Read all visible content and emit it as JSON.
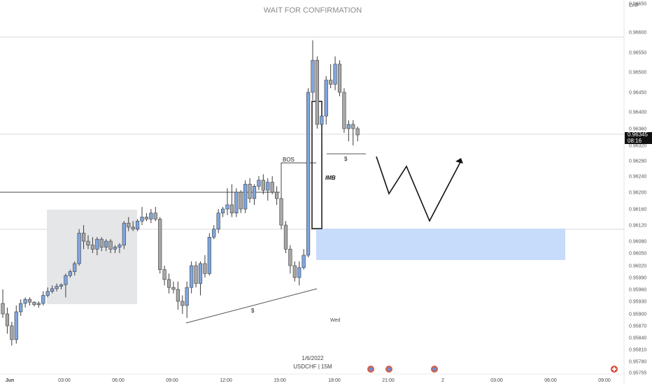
{
  "chart_data": {
    "type": "candlestick",
    "title": "WAIT FOR CONFIRMATION",
    "symbol": "USDCHF | 15M",
    "date_label": "1/6/2022",
    "currency_label": "CHF",
    "y_ticks": [
      "0.96650",
      "0.96600",
      "0.96550",
      "0.96500",
      "0.96450",
      "0.96400",
      "0.96360",
      "0.96320",
      "0.96280",
      "0.96240",
      "0.96200",
      "0.96160",
      "0.96120",
      "0.96080",
      "0.96050",
      "0.96020",
      "0.95990",
      "0.95960",
      "0.95930",
      "0.95900",
      "0.95870",
      "0.95840",
      "0.95810",
      "0.95780",
      "0.95755"
    ],
    "x_ticks": [
      "Jun",
      "03:00",
      "06:00",
      "09:00",
      "12:00",
      "15:00",
      "18:00",
      "21:00",
      "2",
      "03:00",
      "06:00",
      "09:00"
    ],
    "current_price": "0.96345",
    "countdown": "08:16",
    "annotations": {
      "bos": "BOS",
      "imb": "IMB",
      "liquidity_low": "$",
      "liquidity_high": "$",
      "day": "Wed"
    },
    "candles": [
      {
        "o": 0.95925,
        "h": 0.9596,
        "l": 0.9589,
        "c": 0.959
      },
      {
        "o": 0.959,
        "h": 0.95915,
        "l": 0.9585,
        "c": 0.9587
      },
      {
        "o": 0.9587,
        "h": 0.9588,
        "l": 0.9582,
        "c": 0.95835
      },
      {
        "o": 0.95835,
        "h": 0.9592,
        "l": 0.95825,
        "c": 0.95905
      },
      {
        "o": 0.95905,
        "h": 0.95935,
        "l": 0.95895,
        "c": 0.95925
      },
      {
        "o": 0.95925,
        "h": 0.9594,
        "l": 0.95915,
        "c": 0.95935
      },
      {
        "o": 0.95935,
        "h": 0.9594,
        "l": 0.9592,
        "c": 0.95928
      },
      {
        "o": 0.95928,
        "h": 0.9593,
        "l": 0.95918,
        "c": 0.95922
      },
      {
        "o": 0.95922,
        "h": 0.9593,
        "l": 0.95915,
        "c": 0.95925
      },
      {
        "o": 0.95925,
        "h": 0.95955,
        "l": 0.9592,
        "c": 0.95945
      },
      {
        "o": 0.95945,
        "h": 0.95965,
        "l": 0.9594,
        "c": 0.95955
      },
      {
        "o": 0.95955,
        "h": 0.9597,
        "l": 0.9595,
        "c": 0.95962
      },
      {
        "o": 0.95962,
        "h": 0.95975,
        "l": 0.95955,
        "c": 0.95968
      },
      {
        "o": 0.95968,
        "h": 0.95975,
        "l": 0.9596,
        "c": 0.95972
      },
      {
        "o": 0.95972,
        "h": 0.96,
        "l": 0.9594,
        "c": 0.95995
      },
      {
        "o": 0.95995,
        "h": 0.9601,
        "l": 0.9599,
        "c": 0.96005
      },
      {
        "o": 0.96005,
        "h": 0.9603,
        "l": 0.95995,
        "c": 0.96025
      },
      {
        "o": 0.96025,
        "h": 0.9611,
        "l": 0.9602,
        "c": 0.961
      },
      {
        "o": 0.961,
        "h": 0.9612,
        "l": 0.9606,
        "c": 0.9608
      },
      {
        "o": 0.9608,
        "h": 0.96095,
        "l": 0.9606,
        "c": 0.9607
      },
      {
        "o": 0.9607,
        "h": 0.9609,
        "l": 0.9605,
        "c": 0.9606
      },
      {
        "o": 0.9606,
        "h": 0.9609,
        "l": 0.96045,
        "c": 0.96085
      },
      {
        "o": 0.96085,
        "h": 0.9609,
        "l": 0.96055,
        "c": 0.96065
      },
      {
        "o": 0.96065,
        "h": 0.96085,
        "l": 0.96055,
        "c": 0.9608
      },
      {
        "o": 0.9608,
        "h": 0.96085,
        "l": 0.9605,
        "c": 0.9606
      },
      {
        "o": 0.9606,
        "h": 0.9607,
        "l": 0.9605,
        "c": 0.96065
      },
      {
        "o": 0.96065,
        "h": 0.96075,
        "l": 0.9605,
        "c": 0.9607
      },
      {
        "o": 0.9607,
        "h": 0.9613,
        "l": 0.9606,
        "c": 0.96125
      },
      {
        "o": 0.96125,
        "h": 0.9614,
        "l": 0.96105,
        "c": 0.96115
      },
      {
        "o": 0.96115,
        "h": 0.9613,
        "l": 0.96105,
        "c": 0.9611
      },
      {
        "o": 0.9611,
        "h": 0.96135,
        "l": 0.96105,
        "c": 0.9613
      },
      {
        "o": 0.9613,
        "h": 0.96165,
        "l": 0.9612,
        "c": 0.9614
      },
      {
        "o": 0.9614,
        "h": 0.9615,
        "l": 0.9613,
        "c": 0.96135
      },
      {
        "o": 0.96135,
        "h": 0.9616,
        "l": 0.96125,
        "c": 0.9615
      },
      {
        "o": 0.9615,
        "h": 0.96165,
        "l": 0.9613,
        "c": 0.96135
      },
      {
        "o": 0.96135,
        "h": 0.9614,
        "l": 0.96,
        "c": 0.9601
      },
      {
        "o": 0.9601,
        "h": 0.9602,
        "l": 0.9597,
        "c": 0.95985
      },
      {
        "o": 0.95985,
        "h": 0.96,
        "l": 0.9595,
        "c": 0.95965
      },
      {
        "o": 0.95965,
        "h": 0.9598,
        "l": 0.9595,
        "c": 0.9596
      },
      {
        "o": 0.9596,
        "h": 0.9598,
        "l": 0.9591,
        "c": 0.9593
      },
      {
        "o": 0.9593,
        "h": 0.95945,
        "l": 0.959,
        "c": 0.9592
      },
      {
        "o": 0.9592,
        "h": 0.9598,
        "l": 0.9589,
        "c": 0.95965
      },
      {
        "o": 0.95965,
        "h": 0.9603,
        "l": 0.9595,
        "c": 0.9602
      },
      {
        "o": 0.9602,
        "h": 0.9603,
        "l": 0.95965,
        "c": 0.95975
      },
      {
        "o": 0.95975,
        "h": 0.9603,
        "l": 0.95945,
        "c": 0.96025
      },
      {
        "o": 0.96025,
        "h": 0.96045,
        "l": 0.9599,
        "c": 0.96
      },
      {
        "o": 0.96,
        "h": 0.961,
        "l": 0.95995,
        "c": 0.9609
      },
      {
        "o": 0.9609,
        "h": 0.9612,
        "l": 0.96085,
        "c": 0.9611
      },
      {
        "o": 0.9611,
        "h": 0.9616,
        "l": 0.961,
        "c": 0.9615
      },
      {
        "o": 0.9615,
        "h": 0.96165,
        "l": 0.9614,
        "c": 0.9616
      },
      {
        "o": 0.9616,
        "h": 0.9621,
        "l": 0.96145,
        "c": 0.9617
      },
      {
        "o": 0.9617,
        "h": 0.9622,
        "l": 0.9614,
        "c": 0.9615
      },
      {
        "o": 0.9615,
        "h": 0.9621,
        "l": 0.9614,
        "c": 0.962
      },
      {
        "o": 0.962,
        "h": 0.96205,
        "l": 0.9615,
        "c": 0.9616
      },
      {
        "o": 0.9616,
        "h": 0.9623,
        "l": 0.9615,
        "c": 0.9622
      },
      {
        "o": 0.9622,
        "h": 0.96235,
        "l": 0.96175,
        "c": 0.96185
      },
      {
        "o": 0.96185,
        "h": 0.9622,
        "l": 0.9617,
        "c": 0.96215
      },
      {
        "o": 0.96215,
        "h": 0.9624,
        "l": 0.96205,
        "c": 0.9623
      },
      {
        "o": 0.9623,
        "h": 0.96245,
        "l": 0.96195,
        "c": 0.96205
      },
      {
        "o": 0.96205,
        "h": 0.96235,
        "l": 0.9618,
        "c": 0.96225
      },
      {
        "o": 0.96225,
        "h": 0.9624,
        "l": 0.96195,
        "c": 0.962
      },
      {
        "o": 0.962,
        "h": 0.96215,
        "l": 0.9617,
        "c": 0.96185
      },
      {
        "o": 0.96185,
        "h": 0.962,
        "l": 0.9611,
        "c": 0.9612
      },
      {
        "o": 0.9612,
        "h": 0.9613,
        "l": 0.9605,
        "c": 0.9606
      },
      {
        "o": 0.9606,
        "h": 0.9607,
        "l": 0.96,
        "c": 0.9602
      },
      {
        "o": 0.9602,
        "h": 0.9603,
        "l": 0.9598,
        "c": 0.9599
      },
      {
        "o": 0.9599,
        "h": 0.9603,
        "l": 0.9597,
        "c": 0.96015
      },
      {
        "o": 0.96015,
        "h": 0.9606,
        "l": 0.9601,
        "c": 0.96045
      },
      {
        "o": 0.96045,
        "h": 0.9646,
        "l": 0.9604,
        "c": 0.9645
      },
      {
        "o": 0.9645,
        "h": 0.9658,
        "l": 0.9643,
        "c": 0.9653
      },
      {
        "o": 0.9653,
        "h": 0.9654,
        "l": 0.9636,
        "c": 0.9637
      },
      {
        "o": 0.9637,
        "h": 0.9641,
        "l": 0.9632,
        "c": 0.9639
      },
      {
        "o": 0.9639,
        "h": 0.9649,
        "l": 0.9637,
        "c": 0.9648
      },
      {
        "o": 0.9648,
        "h": 0.9652,
        "l": 0.9646,
        "c": 0.9647
      },
      {
        "o": 0.9647,
        "h": 0.9654,
        "l": 0.96455,
        "c": 0.9652
      },
      {
        "o": 0.9652,
        "h": 0.9653,
        "l": 0.9644,
        "c": 0.9645
      },
      {
        "o": 0.9645,
        "h": 0.9646,
        "l": 0.9635,
        "c": 0.9636
      },
      {
        "o": 0.9636,
        "h": 0.9638,
        "l": 0.9633,
        "c": 0.9637
      },
      {
        "o": 0.9637,
        "h": 0.9638,
        "l": 0.9632,
        "c": 0.9636
      },
      {
        "o": 0.9636,
        "h": 0.96365,
        "l": 0.9633,
        "c": 0.96345
      }
    ]
  },
  "colors": {
    "up_fill": "#7fa6df",
    "down_fill": "#a7a7a7",
    "wick": "#3c3c3c",
    "zone_fill": "#c7dbfb",
    "range_box": "#e5e6e8",
    "line": "#333333",
    "text": "#5a5a5a"
  }
}
